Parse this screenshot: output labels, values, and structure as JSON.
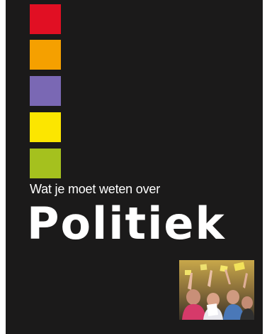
{
  "cover": {
    "subtitle": "Wat je moet weten over",
    "title": "Politiek",
    "swatches": [
      "#e10f23",
      "#f5a000",
      "#7a68b4",
      "#fce600",
      "#a5c11e"
    ],
    "background_color": "#1b1a1a",
    "photo_icon": "crowd-raising-hands-photo"
  }
}
